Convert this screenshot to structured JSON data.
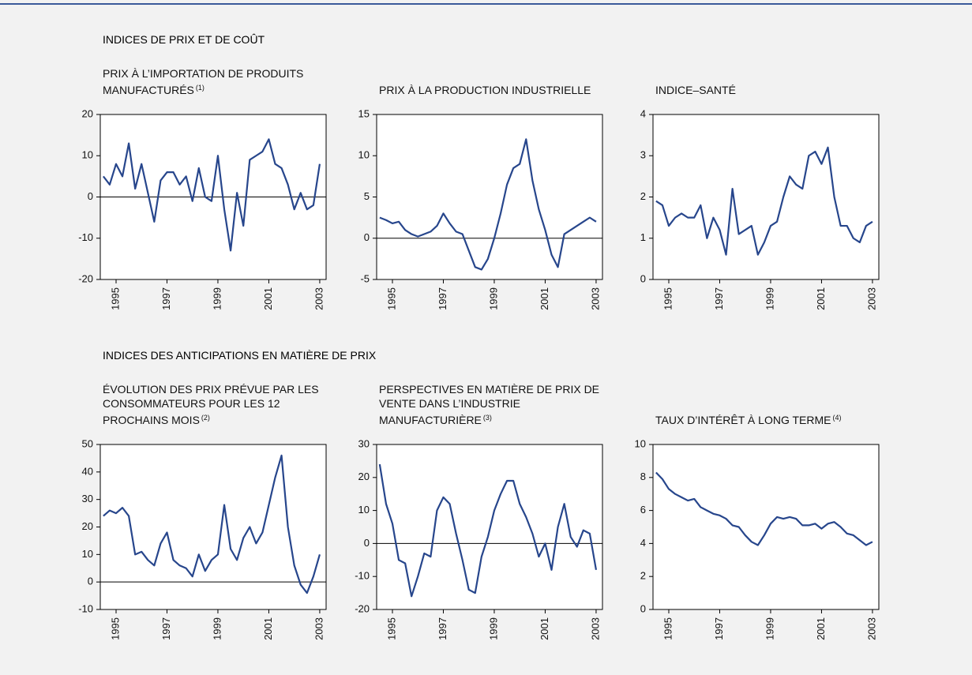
{
  "headings": [
    "INDICES DE PRIX ET DE COÛT",
    "INDICES DES ANTICIPATIONS EN MATIÈRE DE PRIX"
  ],
  "chart_data": [
    {
      "type": "line",
      "title": "PRIX À L’IMPORTATION DE PRODUITS MANUFACTURÉS",
      "title_note": "(1)",
      "x": [
        1994.5,
        1994.75,
        1995,
        1995.25,
        1995.5,
        1995.75,
        1996,
        1996.25,
        1996.5,
        1996.75,
        1997,
        1997.25,
        1997.5,
        1997.75,
        1998,
        1998.25,
        1998.5,
        1998.75,
        1999,
        1999.25,
        1999.5,
        1999.75,
        2000,
        2000.25,
        2000.5,
        2000.75,
        2001,
        2001.25,
        2001.5,
        2001.75,
        2002,
        2002.25,
        2002.5,
        2002.75,
        2003
      ],
      "values": [
        5,
        3,
        8,
        5,
        13,
        2,
        8,
        1,
        -6,
        4,
        6,
        6,
        3,
        5,
        -1,
        7,
        0,
        -1,
        10,
        -3,
        -13,
        1,
        -7,
        9,
        10,
        11,
        14,
        8,
        7,
        3,
        -3,
        1,
        -3,
        -2,
        8
      ],
      "color": "#27468c",
      "xlim": [
        1994.38,
        2003.25
      ],
      "xticks": [
        1995,
        1997,
        1999,
        2001,
        2003
      ],
      "ylim": [
        -20,
        20
      ],
      "yticks": [
        -20,
        -10,
        0,
        10,
        20
      ]
    },
    {
      "type": "line",
      "title": "PRIX À LA PRODUCTION INDUSTRIELLE",
      "x": [
        1994.5,
        1994.75,
        1995,
        1995.25,
        1995.5,
        1995.75,
        1996,
        1996.25,
        1996.5,
        1996.75,
        1997,
        1997.25,
        1997.5,
        1997.75,
        1998,
        1998.25,
        1998.5,
        1998.75,
        1999,
        1999.25,
        1999.5,
        1999.75,
        2000,
        2000.25,
        2000.5,
        2000.75,
        2001,
        2001.25,
        2001.5,
        2001.75,
        2002,
        2002.25,
        2002.5,
        2002.75,
        2003
      ],
      "values": [
        2.5,
        2.2,
        1.8,
        2,
        1.0,
        0.5,
        0.2,
        0.5,
        0.8,
        1.5,
        3.0,
        1.8,
        0.8,
        0.5,
        -1.5,
        -3.5,
        -3.8,
        -2.5,
        0,
        3,
        6.5,
        8.5,
        9,
        12,
        7,
        3.5,
        1,
        -2,
        -3.5,
        0.5,
        1,
        1.5,
        2,
        2.5,
        2.0
      ],
      "color": "#27468c",
      "xlim": [
        1994.38,
        2003.25
      ],
      "xticks": [
        1995,
        1997,
        1999,
        2001,
        2003
      ],
      "ylim": [
        -5,
        15
      ],
      "yticks": [
        -5,
        0,
        5,
        10,
        15
      ]
    },
    {
      "type": "line",
      "title": "INDICE–SANTÉ",
      "x": [
        1994.5,
        1994.75,
        1995,
        1995.25,
        1995.5,
        1995.75,
        1996,
        1996.25,
        1996.5,
        1996.75,
        1997,
        1997.25,
        1997.5,
        1997.75,
        1998,
        1998.25,
        1998.5,
        1998.75,
        1999,
        1999.25,
        1999.5,
        1999.75,
        2000,
        2000.25,
        2000.5,
        2000.75,
        2001,
        2001.25,
        2001.5,
        2001.75,
        2002,
        2002.25,
        2002.5,
        2002.75,
        2003
      ],
      "values": [
        1.9,
        1.8,
        1.3,
        1.5,
        1.6,
        1.5,
        1.5,
        1.8,
        1.0,
        1.5,
        1.2,
        0.6,
        2.2,
        1.1,
        1.2,
        1.3,
        0.6,
        0.9,
        1.3,
        1.4,
        2.0,
        2.5,
        2.3,
        2.2,
        3.0,
        3.1,
        2.8,
        3.2,
        2.0,
        1.3,
        1.3,
        1.0,
        0.9,
        1.3,
        1.4
      ],
      "color": "#27468c",
      "xlim": [
        1994.38,
        2003.25
      ],
      "xticks": [
        1995,
        1997,
        1999,
        2001,
        2003
      ],
      "ylim": [
        0,
        4
      ],
      "yticks": [
        0,
        1,
        2,
        3,
        4
      ]
    },
    {
      "type": "line",
      "title": "ÉVOLUTION DES PRIX PRÉVUE PAR LES CONSOMMATEURS POUR LES 12 PROCHAINS MOIS",
      "title_note": "(2)",
      "x": [
        1994.5,
        1994.75,
        1995,
        1995.25,
        1995.5,
        1995.75,
        1996,
        1996.25,
        1996.5,
        1996.75,
        1997,
        1997.25,
        1997.5,
        1997.75,
        1998,
        1998.25,
        1998.5,
        1998.75,
        1999,
        1999.25,
        1999.5,
        1999.75,
        2000,
        2000.25,
        2000.5,
        2000.75,
        2001,
        2001.25,
        2001.5,
        2001.75,
        2002,
        2002.25,
        2002.5,
        2002.75,
        2003
      ],
      "values": [
        24,
        26,
        25,
        27,
        24,
        10,
        11,
        8,
        6,
        14,
        18,
        8,
        6,
        5,
        2,
        10,
        4,
        8,
        10,
        28,
        12,
        8,
        16,
        20,
        14,
        18,
        28,
        38,
        46,
        20,
        6,
        -1,
        -4,
        2,
        10
      ],
      "color": "#27468c",
      "xlim": [
        1994.38,
        2003.25
      ],
      "xticks": [
        1995,
        1997,
        1999,
        2001,
        2003
      ],
      "ylim": [
        -10,
        50
      ],
      "yticks": [
        -10,
        0,
        10,
        20,
        30,
        40,
        50
      ]
    },
    {
      "type": "line",
      "title": "PERSPECTIVES EN MATIÈRE DE PRIX DE VENTE DANS L’INDUSTRIE MANUFACTURIÈRE",
      "title_note": "(3)",
      "x": [
        1994.5,
        1994.75,
        1995,
        1995.25,
        1995.5,
        1995.75,
        1996,
        1996.25,
        1996.5,
        1996.75,
        1997,
        1997.25,
        1997.5,
        1997.75,
        1998,
        1998.25,
        1998.5,
        1998.75,
        1999,
        1999.25,
        1999.5,
        1999.75,
        2000,
        2000.25,
        2000.5,
        2000.75,
        2001,
        2001.25,
        2001.5,
        2001.75,
        2002,
        2002.25,
        2002.5,
        2002.75,
        2003
      ],
      "values": [
        24,
        12,
        6,
        -5,
        -6,
        -16,
        -10,
        -3,
        -4,
        10,
        14,
        12,
        3,
        -5,
        -14,
        -15,
        -4,
        2,
        10,
        15,
        19,
        19,
        12,
        8,
        3,
        -4,
        0,
        -8,
        5,
        12,
        2,
        -1,
        4,
        3,
        -8
      ],
      "color": "#27468c",
      "xlim": [
        1994.38,
        2003.25
      ],
      "xticks": [
        1995,
        1997,
        1999,
        2001,
        2003
      ],
      "ylim": [
        -20,
        30
      ],
      "yticks": [
        -20,
        -10,
        0,
        10,
        20,
        30
      ]
    },
    {
      "type": "line",
      "title": "TAUX D’INTÉRÊT À LONG TERME",
      "title_note": "(4)",
      "x": [
        1994.5,
        1994.75,
        1995,
        1995.25,
        1995.5,
        1995.75,
        1996,
        1996.25,
        1996.5,
        1996.75,
        1997,
        1997.25,
        1997.5,
        1997.75,
        1998,
        1998.25,
        1998.5,
        1998.75,
        1999,
        1999.25,
        1999.5,
        1999.75,
        2000,
        2000.25,
        2000.5,
        2000.75,
        2001,
        2001.25,
        2001.5,
        2001.75,
        2002,
        2002.25,
        2002.5,
        2002.75,
        2003
      ],
      "values": [
        8.3,
        7.9,
        7.3,
        7.0,
        6.8,
        6.6,
        6.7,
        6.2,
        6.0,
        5.8,
        5.7,
        5.5,
        5.1,
        5.0,
        4.5,
        4.1,
        3.9,
        4.5,
        5.2,
        5.6,
        5.5,
        5.6,
        5.5,
        5.1,
        5.1,
        5.2,
        4.9,
        5.2,
        5.3,
        5.0,
        4.6,
        4.5,
        4.2,
        3.9,
        4.1
      ],
      "color": "#27468c",
      "xlim": [
        1994.38,
        2003.25
      ],
      "xticks": [
        1995,
        1997,
        1999,
        2001,
        2003
      ],
      "ylim": [
        0,
        10
      ],
      "yticks": [
        0,
        2,
        4,
        6,
        8,
        10
      ]
    }
  ]
}
